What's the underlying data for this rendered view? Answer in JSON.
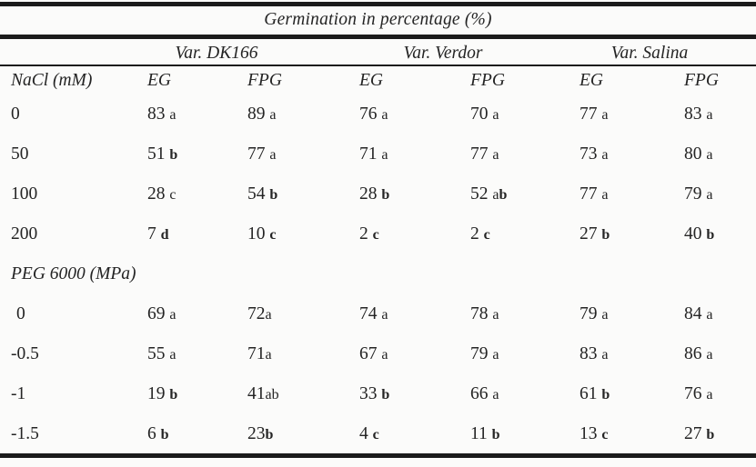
{
  "title": "Germination in percentage (%)",
  "groups": [
    {
      "label": "Var. DK166"
    },
    {
      "label": "Var. Verdor"
    },
    {
      "label": "Var. Salina"
    }
  ],
  "columns": {
    "row_header": "NaCl (mM)",
    "sub": [
      "EG",
      "FPG",
      "EG",
      "FPG",
      "EG",
      "FPG"
    ]
  },
  "sections": [
    {
      "header": null,
      "rows": [
        {
          "label": "0",
          "cells": [
            {
              "v": "83",
              "sp": true,
              "r": "a",
              "b": ""
            },
            {
              "v": "89",
              "sp": true,
              "r": "a",
              "b": ""
            },
            {
              "v": "76",
              "sp": true,
              "r": "a",
              "b": ""
            },
            {
              "v": "70",
              "sp": true,
              "r": "a",
              "b": ""
            },
            {
              "v": "77",
              "sp": true,
              "r": "a",
              "b": ""
            },
            {
              "v": "83",
              "sp": true,
              "r": "a",
              "b": ""
            }
          ]
        },
        {
          "label": "50",
          "cells": [
            {
              "v": "51",
              "sp": true,
              "r": "",
              "b": "b"
            },
            {
              "v": "77",
              "sp": true,
              "r": "a",
              "b": ""
            },
            {
              "v": "71",
              "sp": true,
              "r": "a",
              "b": ""
            },
            {
              "v": "77",
              "sp": true,
              "r": "a",
              "b": ""
            },
            {
              "v": "73",
              "sp": true,
              "r": "a",
              "b": ""
            },
            {
              "v": "80",
              "sp": true,
              "r": "a",
              "b": ""
            }
          ]
        },
        {
          "label": "100",
          "cells": [
            {
              "v": "28",
              "sp": true,
              "r": "c",
              "b": ""
            },
            {
              "v": "54",
              "sp": true,
              "r": "",
              "b": "b"
            },
            {
              "v": "28",
              "sp": true,
              "r": "",
              "b": "b"
            },
            {
              "v": "52",
              "sp": true,
              "r": "a",
              "b": "b"
            },
            {
              "v": "77",
              "sp": true,
              "r": "a",
              "b": ""
            },
            {
              "v": "79",
              "sp": true,
              "r": "a",
              "b": ""
            }
          ]
        },
        {
          "label": "200",
          "cells": [
            {
              "v": "7",
              "sp": true,
              "r": "",
              "b": "d"
            },
            {
              "v": "10",
              "sp": true,
              "r": "",
              "b": "c"
            },
            {
              "v": "2",
              "sp": true,
              "r": "",
              "b": "c"
            },
            {
              "v": "2",
              "sp": true,
              "r": "",
              "b": "c"
            },
            {
              "v": "27",
              "sp": true,
              "r": "",
              "b": "b"
            },
            {
              "v": "40",
              "sp": true,
              "r": "",
              "b": "b"
            }
          ]
        }
      ]
    },
    {
      "header": "PEG 6000 (MPa)",
      "rows": [
        {
          "label": "0",
          "indent": true,
          "cells": [
            {
              "v": "69",
              "sp": true,
              "r": "a",
              "b": ""
            },
            {
              "v": "72",
              "sp": false,
              "r": "a",
              "b": ""
            },
            {
              "v": "74",
              "sp": true,
              "r": "a",
              "b": ""
            },
            {
              "v": "78",
              "sp": true,
              "r": "a",
              "b": ""
            },
            {
              "v": "79",
              "sp": true,
              "r": "a",
              "b": ""
            },
            {
              "v": "84",
              "sp": true,
              "r": "a",
              "b": ""
            }
          ]
        },
        {
          "label": "-0.5",
          "cells": [
            {
              "v": "55",
              "sp": true,
              "r": "a",
              "b": ""
            },
            {
              "v": "71",
              "sp": false,
              "r": "a",
              "b": ""
            },
            {
              "v": "67",
              "sp": true,
              "r": "a",
              "b": ""
            },
            {
              "v": "79",
              "sp": true,
              "r": "a",
              "b": ""
            },
            {
              "v": "83",
              "sp": true,
              "r": "a",
              "b": ""
            },
            {
              "v": "86",
              "sp": true,
              "r": "a",
              "b": ""
            }
          ]
        },
        {
          "label": "-1",
          "cells": [
            {
              "v": "19",
              "sp": true,
              "r": "",
              "b": "b"
            },
            {
              "v": "41",
              "sp": false,
              "r": "ab",
              "b": ""
            },
            {
              "v": "33",
              "sp": true,
              "r": "",
              "b": "b"
            },
            {
              "v": "66",
              "sp": true,
              "r": "a",
              "b": ""
            },
            {
              "v": "61",
              "sp": true,
              "r": "",
              "b": "b"
            },
            {
              "v": "76",
              "sp": true,
              "r": "a",
              "b": ""
            }
          ]
        },
        {
          "label": "-1.5",
          "cells": [
            {
              "v": "6",
              "sp": true,
              "r": "",
              "b": "b"
            },
            {
              "v": "23",
              "sp": false,
              "r": "",
              "b": "b"
            },
            {
              "v": "4",
              "sp": true,
              "r": "",
              "b": "c"
            },
            {
              "v": "11",
              "sp": true,
              "r": "",
              "b": "b"
            },
            {
              "v": "13",
              "sp": true,
              "r": "",
              "b": "c"
            },
            {
              "v": "27",
              "sp": true,
              "r": "",
              "b": "b"
            }
          ]
        }
      ]
    }
  ],
  "colors": {
    "ink": "#242424",
    "rule": "#1b1b1b",
    "background": "#fbfbfa"
  }
}
